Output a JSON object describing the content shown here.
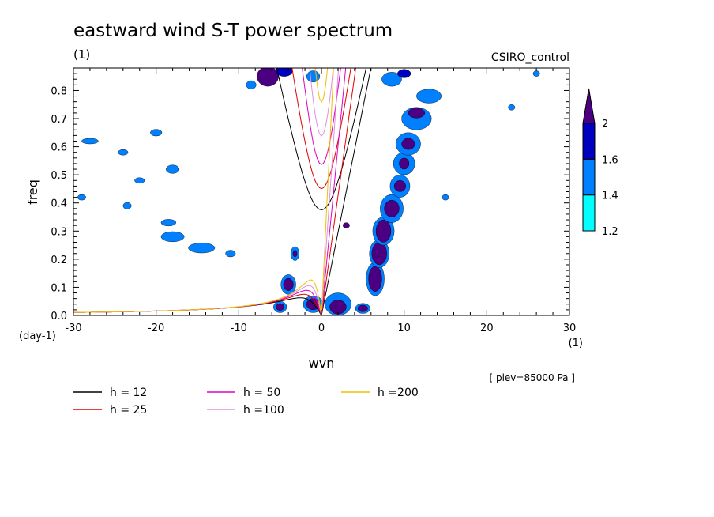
{
  "chart_data": {
    "type": "contour",
    "title": "eastward wind S-T power spectrum",
    "subtitle_left": "(1)",
    "subtitle_right": "CSIRO_control",
    "xlabel": "wvn",
    "ylabel": "freq",
    "x_unit": "(1)",
    "y_unit": "(day-1)",
    "xlim": [
      -30,
      30
    ],
    "ylim": [
      0,
      0.88
    ],
    "x_ticks": [
      -30,
      -20,
      -10,
      0,
      10,
      20,
      30
    ],
    "x_tick_labels": [
      "-30",
      "-20",
      "-10",
      "0",
      "10",
      "20",
      "30"
    ],
    "y_ticks": [
      0,
      0.1,
      0.2,
      0.3,
      0.4,
      0.5,
      0.6,
      0.7,
      0.8
    ],
    "y_tick_labels": [
      "0.0",
      "0.1",
      "0.2",
      "0.3",
      "0.4",
      "0.5",
      "0.6",
      "0.7",
      "0.8"
    ],
    "annotation": "[ plev=85000 Pa ]",
    "colorbar": {
      "levels": [
        1.2,
        1.4,
        1.6,
        2
      ],
      "labels": [
        "1.2",
        "1.4",
        "1.6",
        "2"
      ],
      "colors": [
        "#00ffff",
        "#0080ff",
        "#0000c0",
        "#4b0082"
      ]
    },
    "dispersion_curves": [
      {
        "label": "h = 12",
        "h": 12,
        "color": "#000000"
      },
      {
        "label": "h = 25",
        "h": 25,
        "color": "#e00000"
      },
      {
        "label": "h = 50",
        "h": 50,
        "color": "#e000c0"
      },
      {
        "label": "h =100",
        "h": 100,
        "color": "#e090e0"
      },
      {
        "label": "h =200",
        "h": 200,
        "color": "#f0c000"
      }
    ],
    "regions": [
      {
        "x": -6.5,
        "y": 0.85,
        "rx": 1.3,
        "ry": 0.035,
        "level": 3
      },
      {
        "x": -4.5,
        "y": 0.87,
        "rx": 1.0,
        "ry": 0.02,
        "level": 2
      },
      {
        "x": -1.0,
        "y": 0.85,
        "rx": 0.8,
        "ry": 0.02,
        "level": 1
      },
      {
        "x": -8.5,
        "y": 0.82,
        "rx": 0.6,
        "ry": 0.015,
        "level": 1
      },
      {
        "x": -20.0,
        "y": 0.65,
        "rx": 0.7,
        "ry": 0.012,
        "level": 1
      },
      {
        "x": -28.0,
        "y": 0.62,
        "rx": 1.0,
        "ry": 0.01,
        "level": 1
      },
      {
        "x": -18.0,
        "y": 0.52,
        "rx": 0.8,
        "ry": 0.015,
        "level": 1
      },
      {
        "x": -22.0,
        "y": 0.48,
        "rx": 0.6,
        "ry": 0.01,
        "level": 1
      },
      {
        "x": -24.0,
        "y": 0.58,
        "rx": 0.6,
        "ry": 0.01,
        "level": 1
      },
      {
        "x": -29.0,
        "y": 0.42,
        "rx": 0.5,
        "ry": 0.01,
        "level": 1
      },
      {
        "x": -23.5,
        "y": 0.39,
        "rx": 0.5,
        "ry": 0.012,
        "level": 1
      },
      {
        "x": -18.5,
        "y": 0.33,
        "rx": 0.9,
        "ry": 0.012,
        "level": 1
      },
      {
        "x": -18.0,
        "y": 0.28,
        "rx": 1.4,
        "ry": 0.018,
        "level": 1
      },
      {
        "x": -14.5,
        "y": 0.24,
        "rx": 1.6,
        "ry": 0.018,
        "level": 1
      },
      {
        "x": -11.0,
        "y": 0.22,
        "rx": 0.6,
        "ry": 0.012,
        "level": 1
      },
      {
        "x": -3.2,
        "y": 0.22,
        "rx": 0.5,
        "ry": 0.025,
        "level": 1
      },
      {
        "x": -3.2,
        "y": 0.22,
        "rx": 0.25,
        "ry": 0.012,
        "level": 3
      },
      {
        "x": 3.0,
        "y": 0.32,
        "rx": 0.4,
        "ry": 0.01,
        "level": 3
      },
      {
        "x": -4.0,
        "y": 0.11,
        "rx": 0.9,
        "ry": 0.035,
        "level": 1
      },
      {
        "x": -4.0,
        "y": 0.11,
        "rx": 0.6,
        "ry": 0.022,
        "level": 3
      },
      {
        "x": -5.0,
        "y": 0.03,
        "rx": 0.8,
        "ry": 0.02,
        "level": 1
      },
      {
        "x": -5.0,
        "y": 0.03,
        "rx": 0.5,
        "ry": 0.012,
        "level": 3
      },
      {
        "x": -1.0,
        "y": 0.04,
        "rx": 1.2,
        "ry": 0.03,
        "level": 1
      },
      {
        "x": -1.0,
        "y": 0.04,
        "rx": 0.8,
        "ry": 0.02,
        "level": 3
      },
      {
        "x": 2.0,
        "y": 0.04,
        "rx": 1.6,
        "ry": 0.04,
        "level": 1
      },
      {
        "x": 2.0,
        "y": 0.03,
        "rx": 1.0,
        "ry": 0.025,
        "level": 3
      },
      {
        "x": 5.0,
        "y": 0.025,
        "rx": 0.9,
        "ry": 0.018,
        "level": 1
      },
      {
        "x": 5.0,
        "y": 0.025,
        "rx": 0.6,
        "ry": 0.012,
        "level": 3
      },
      {
        "x": 6.5,
        "y": 0.13,
        "rx": 1.1,
        "ry": 0.06,
        "level": 1
      },
      {
        "x": 6.5,
        "y": 0.13,
        "rx": 0.8,
        "ry": 0.045,
        "level": 3
      },
      {
        "x": 7.0,
        "y": 0.22,
        "rx": 1.2,
        "ry": 0.05,
        "level": 1
      },
      {
        "x": 7.0,
        "y": 0.22,
        "rx": 0.9,
        "ry": 0.04,
        "level": 3
      },
      {
        "x": 7.5,
        "y": 0.3,
        "rx": 1.3,
        "ry": 0.05,
        "level": 1
      },
      {
        "x": 7.5,
        "y": 0.3,
        "rx": 0.9,
        "ry": 0.04,
        "level": 3
      },
      {
        "x": 8.5,
        "y": 0.38,
        "rx": 1.4,
        "ry": 0.05,
        "level": 1
      },
      {
        "x": 8.5,
        "y": 0.38,
        "rx": 0.9,
        "ry": 0.03,
        "level": 3
      },
      {
        "x": 9.5,
        "y": 0.46,
        "rx": 1.2,
        "ry": 0.04,
        "level": 1
      },
      {
        "x": 9.5,
        "y": 0.46,
        "rx": 0.7,
        "ry": 0.02,
        "level": 3
      },
      {
        "x": 10.0,
        "y": 0.54,
        "rx": 1.3,
        "ry": 0.04,
        "level": 1
      },
      {
        "x": 10.0,
        "y": 0.54,
        "rx": 0.6,
        "ry": 0.02,
        "level": 3
      },
      {
        "x": 10.5,
        "y": 0.61,
        "rx": 1.5,
        "ry": 0.04,
        "level": 1
      },
      {
        "x": 10.5,
        "y": 0.61,
        "rx": 0.8,
        "ry": 0.02,
        "level": 3
      },
      {
        "x": 11.5,
        "y": 0.7,
        "rx": 1.8,
        "ry": 0.04,
        "level": 1
      },
      {
        "x": 11.5,
        "y": 0.72,
        "rx": 1.0,
        "ry": 0.018,
        "level": 3
      },
      {
        "x": 13.0,
        "y": 0.78,
        "rx": 1.5,
        "ry": 0.025,
        "level": 1
      },
      {
        "x": 8.5,
        "y": 0.84,
        "rx": 1.2,
        "ry": 0.025,
        "level": 1
      },
      {
        "x": 10.0,
        "y": 0.86,
        "rx": 0.8,
        "ry": 0.015,
        "level": 2
      },
      {
        "x": 23.0,
        "y": 0.74,
        "rx": 0.4,
        "ry": 0.01,
        "level": 1
      },
      {
        "x": 26.0,
        "y": 0.86,
        "rx": 0.4,
        "ry": 0.01,
        "level": 1
      },
      {
        "x": 15.0,
        "y": 0.42,
        "rx": 0.4,
        "ry": 0.01,
        "level": 1
      }
    ]
  }
}
